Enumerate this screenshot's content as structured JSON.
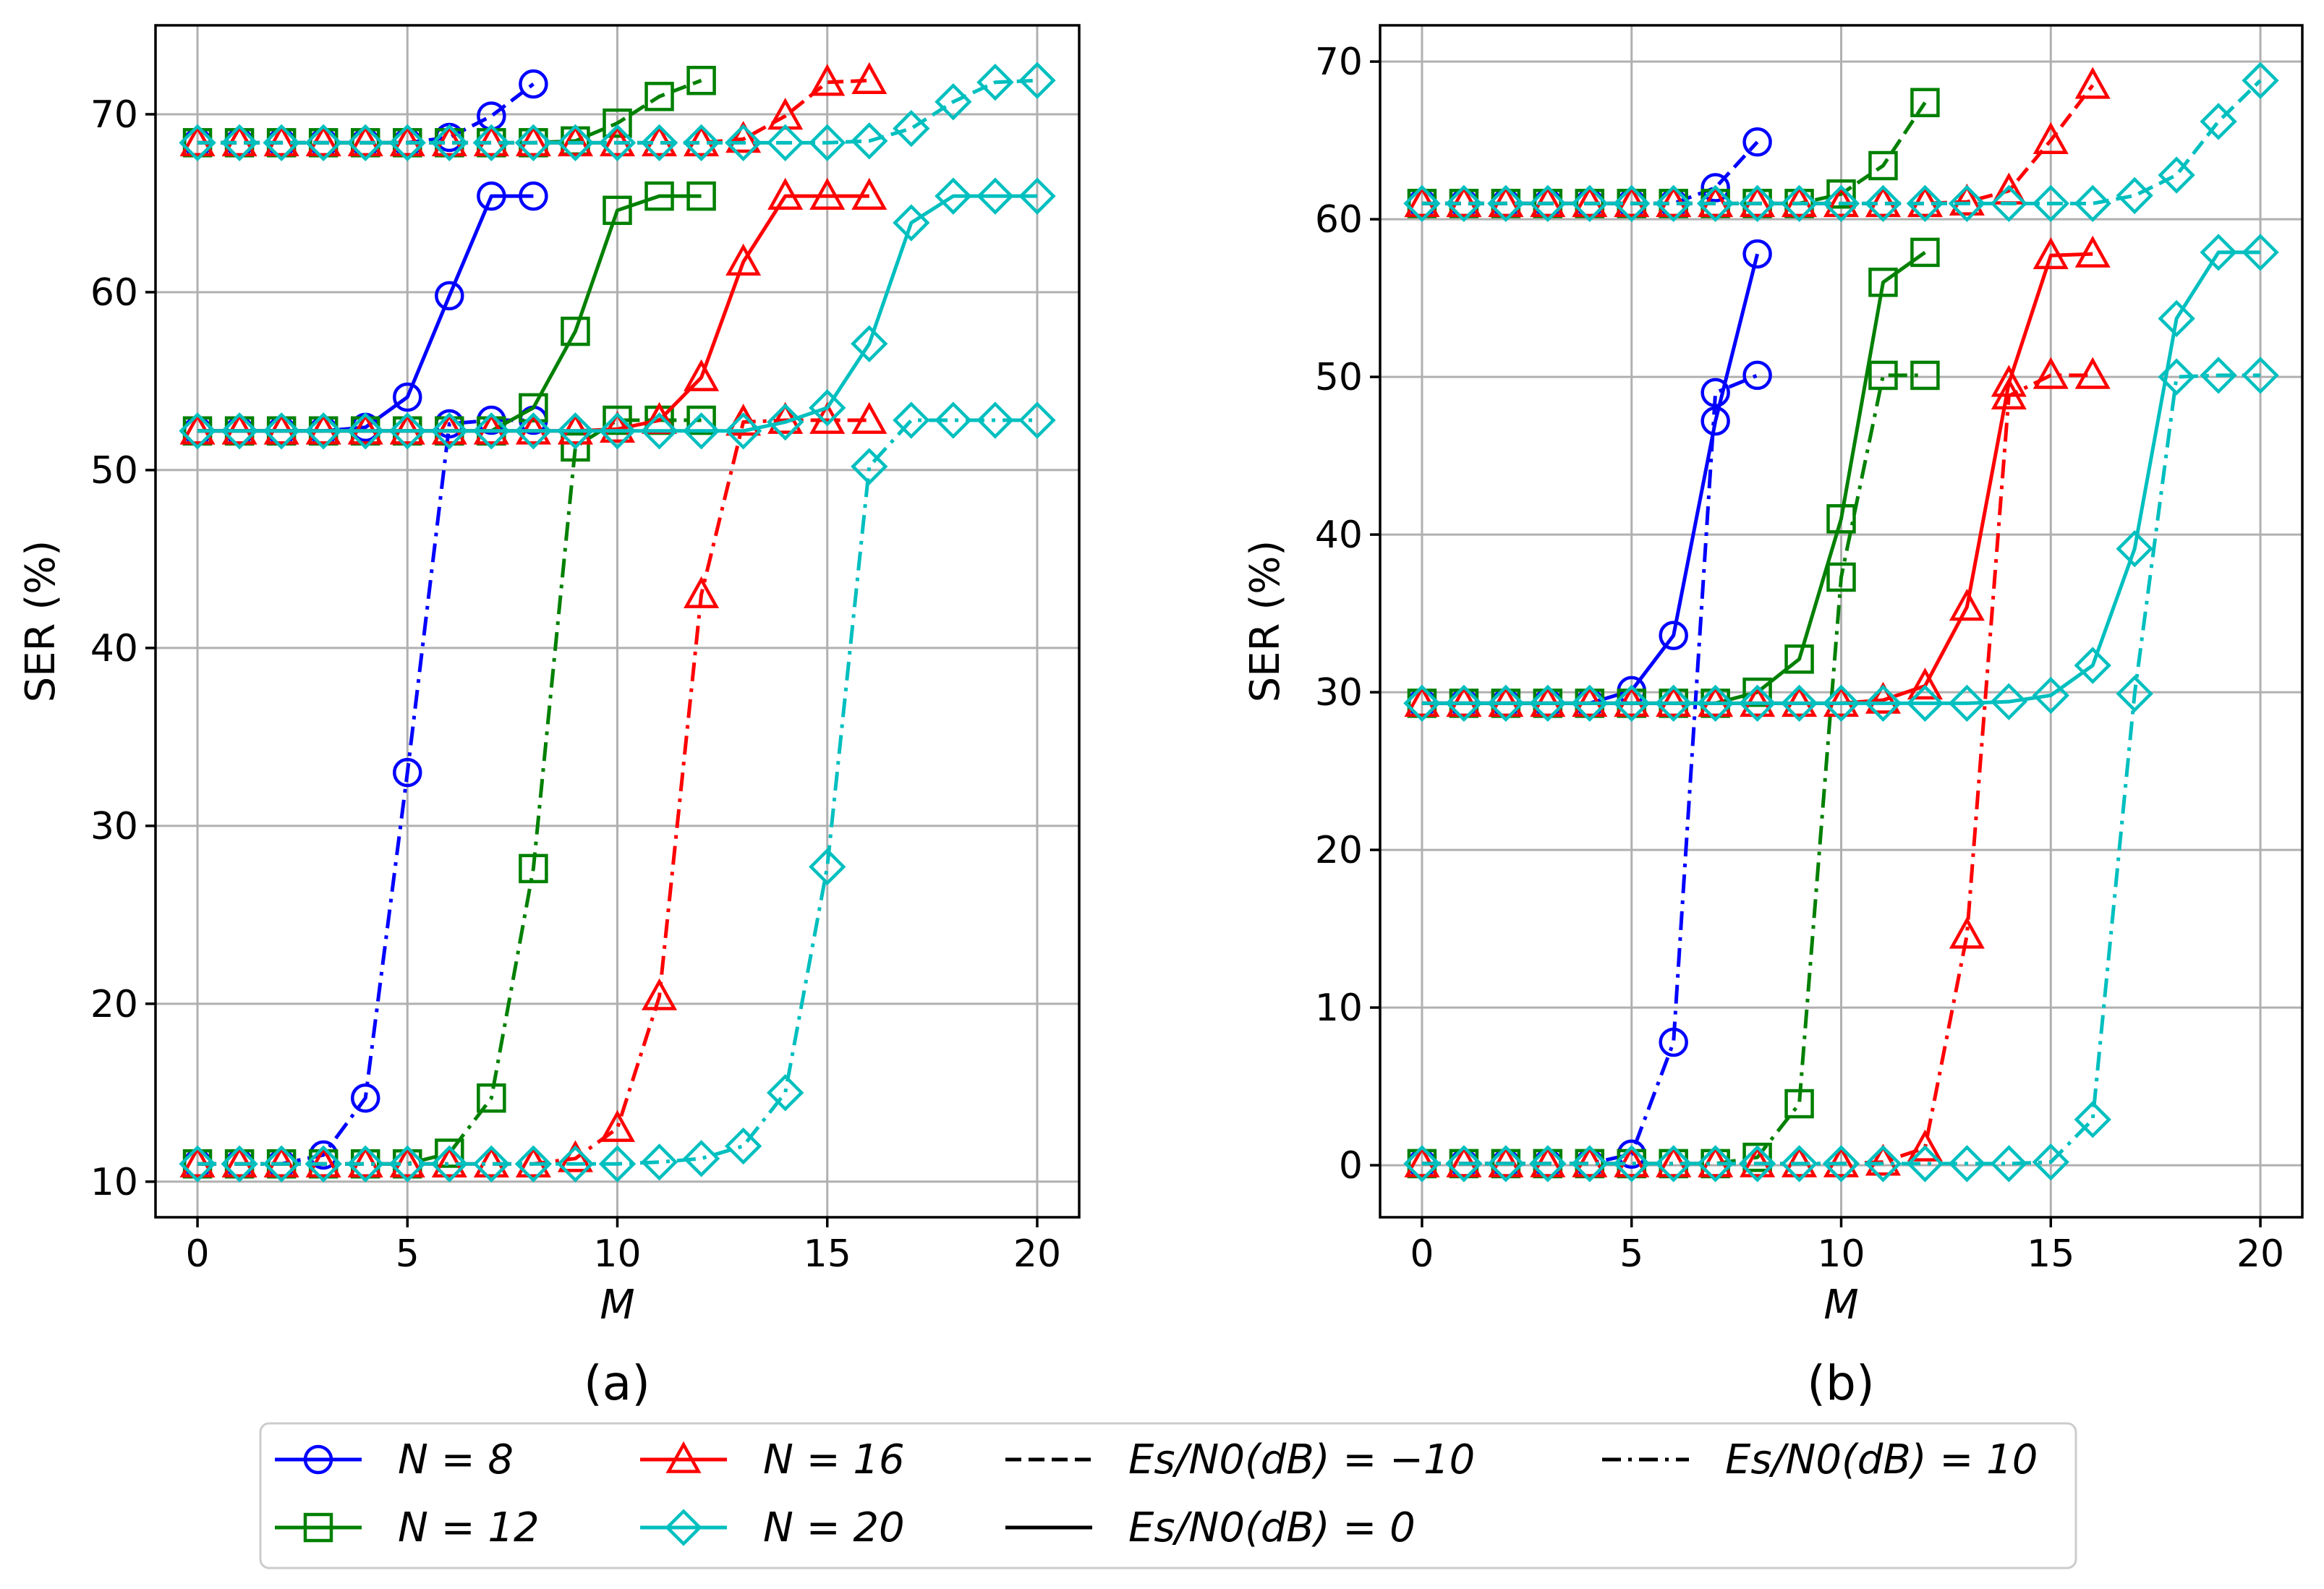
{
  "figure": {
    "legend": [
      {
        "key": "N8",
        "label": "N = 8",
        "color": "#0000ff",
        "marker": "circle"
      },
      {
        "key": "N12",
        "label": "N = 12",
        "color": "#008000",
        "marker": "square"
      },
      {
        "key": "N16",
        "label": "N = 16",
        "color": "#ff0000",
        "marker": "triangle"
      },
      {
        "key": "N20",
        "label": "N = 20",
        "color": "#00bfbf",
        "marker": "diamond"
      },
      {
        "key": "m10",
        "label": "Es/N0(dB) = −10",
        "linestyle": "dashed"
      },
      {
        "key": "p0",
        "label": "Es/N0(dB) = 0",
        "linestyle": "solid"
      },
      {
        "key": "p10",
        "label": "Es/N0(dB) = 10",
        "linestyle": "dashdot"
      }
    ]
  },
  "chart_data": [
    {
      "type": "line",
      "panel": "(a)",
      "xlabel": "M",
      "ylabel": "SER (%)",
      "xlim": [
        -1,
        21
      ],
      "ylim": [
        8,
        75
      ],
      "xticks": [
        0,
        5,
        10,
        15,
        20
      ],
      "yticks": [
        10,
        20,
        30,
        40,
        50,
        60,
        70
      ],
      "grid": true,
      "series": [
        {
          "name": "N = 8, Es/N0 = −10 dB",
          "color": "#0000ff",
          "marker": "circle",
          "linestyle": "dashed",
          "x": [
            0,
            1,
            2,
            3,
            4,
            5,
            6,
            7,
            8
          ],
          "y": [
            68.4,
            68.4,
            68.4,
            68.4,
            68.4,
            68.4,
            68.7,
            69.9,
            71.7
          ]
        },
        {
          "name": "N = 8, Es/N0 = 0 dB",
          "color": "#0000ff",
          "marker": "circle",
          "linestyle": "solid",
          "x": [
            0,
            1,
            2,
            3,
            4,
            5,
            6,
            7,
            8
          ],
          "y": [
            52.2,
            52.2,
            52.2,
            52.2,
            52.4,
            54.1,
            59.8,
            65.4,
            65.4
          ]
        },
        {
          "name": "N = 8, Es/N0 = 10 dB",
          "color": "#0000ff",
          "marker": "circle",
          "linestyle": "dashdot",
          "x": [
            0,
            1,
            2,
            3,
            4,
            5,
            6,
            7,
            8
          ],
          "y": [
            11.0,
            11.0,
            11.0,
            11.5,
            14.7,
            33.0,
            52.6,
            52.8,
            52.8
          ]
        },
        {
          "name": "N = 12, Es/N0 = −10 dB",
          "color": "#008000",
          "marker": "square",
          "linestyle": "dashed",
          "x": [
            0,
            1,
            2,
            3,
            4,
            5,
            6,
            7,
            8,
            9,
            10,
            11,
            12
          ],
          "y": [
            68.4,
            68.4,
            68.4,
            68.4,
            68.4,
            68.4,
            68.4,
            68.4,
            68.4,
            68.5,
            69.5,
            71.0,
            71.9
          ]
        },
        {
          "name": "N = 12, Es/N0 = 0 dB",
          "color": "#008000",
          "marker": "square",
          "linestyle": "solid",
          "x": [
            0,
            1,
            2,
            3,
            4,
            5,
            6,
            7,
            8,
            9,
            10,
            11,
            12
          ],
          "y": [
            52.2,
            52.2,
            52.2,
            52.2,
            52.2,
            52.2,
            52.2,
            52.2,
            53.5,
            57.8,
            64.6,
            65.4,
            65.4
          ]
        },
        {
          "name": "N = 12, Es/N0 = 10 dB",
          "color": "#008000",
          "marker": "square",
          "linestyle": "dashdot",
          "x": [
            0,
            1,
            2,
            3,
            4,
            5,
            6,
            7,
            8,
            9,
            10,
            11,
            12
          ],
          "y": [
            11.0,
            11.0,
            11.0,
            11.0,
            11.0,
            11.0,
            11.6,
            14.7,
            27.6,
            51.3,
            52.8,
            52.8,
            52.8
          ]
        },
        {
          "name": "N = 16, Es/N0 = −10 dB",
          "color": "#ff0000",
          "marker": "triangle",
          "linestyle": "dashed",
          "x": [
            0,
            1,
            2,
            3,
            4,
            5,
            6,
            7,
            8,
            9,
            10,
            11,
            12,
            13,
            14,
            15,
            16
          ],
          "y": [
            68.4,
            68.4,
            68.4,
            68.4,
            68.4,
            68.4,
            68.4,
            68.4,
            68.4,
            68.4,
            68.4,
            68.4,
            68.4,
            68.6,
            69.9,
            71.8,
            71.9
          ]
        },
        {
          "name": "N = 16, Es/N0 = 0 dB",
          "color": "#ff0000",
          "marker": "triangle",
          "linestyle": "solid",
          "x": [
            0,
            1,
            2,
            3,
            4,
            5,
            6,
            7,
            8,
            9,
            10,
            11,
            12,
            13,
            14,
            15,
            16
          ],
          "y": [
            52.2,
            52.2,
            52.2,
            52.2,
            52.2,
            52.2,
            52.2,
            52.2,
            52.2,
            52.2,
            52.3,
            52.8,
            55.2,
            61.7,
            65.4,
            65.4,
            65.4
          ]
        },
        {
          "name": "N = 16, Es/N0 = 10 dB",
          "color": "#ff0000",
          "marker": "triangle",
          "linestyle": "dashdot",
          "x": [
            0,
            1,
            2,
            3,
            4,
            5,
            6,
            7,
            8,
            9,
            10,
            11,
            12,
            13,
            14,
            15,
            16
          ],
          "y": [
            11.0,
            11.0,
            11.0,
            11.0,
            11.0,
            11.0,
            11.0,
            11.0,
            11.0,
            11.3,
            13.0,
            20.4,
            43.0,
            52.7,
            52.8,
            52.8,
            52.8
          ]
        },
        {
          "name": "N = 20, Es/N0 = −10 dB",
          "color": "#00bfbf",
          "marker": "diamond",
          "linestyle": "dashed",
          "x": [
            0,
            1,
            2,
            3,
            4,
            5,
            6,
            7,
            8,
            9,
            10,
            11,
            12,
            13,
            14,
            15,
            16,
            17,
            18,
            19,
            20
          ],
          "y": [
            68.4,
            68.4,
            68.4,
            68.4,
            68.4,
            68.4,
            68.4,
            68.4,
            68.4,
            68.4,
            68.4,
            68.4,
            68.4,
            68.4,
            68.4,
            68.4,
            68.5,
            69.2,
            70.7,
            71.8,
            71.9
          ]
        },
        {
          "name": "N = 20, Es/N0 = 0 dB",
          "color": "#00bfbf",
          "marker": "diamond",
          "linestyle": "solid",
          "x": [
            0,
            1,
            2,
            3,
            4,
            5,
            6,
            7,
            8,
            9,
            10,
            11,
            12,
            13,
            14,
            15,
            16,
            17,
            18,
            19,
            20
          ],
          "y": [
            52.2,
            52.2,
            52.2,
            52.2,
            52.2,
            52.2,
            52.2,
            52.2,
            52.2,
            52.2,
            52.2,
            52.2,
            52.2,
            52.2,
            52.7,
            53.5,
            57.1,
            63.9,
            65.4,
            65.4,
            65.4
          ]
        },
        {
          "name": "N = 20, Es/N0 = 10 dB",
          "color": "#00bfbf",
          "marker": "diamond",
          "linestyle": "dashdot",
          "x": [
            0,
            1,
            2,
            3,
            4,
            5,
            6,
            7,
            8,
            9,
            10,
            11,
            12,
            13,
            14,
            15,
            16,
            17,
            18,
            19,
            20
          ],
          "y": [
            11.0,
            11.0,
            11.0,
            11.0,
            11.0,
            11.0,
            11.0,
            11.0,
            11.0,
            11.0,
            11.0,
            11.1,
            11.3,
            12.0,
            15.0,
            27.7,
            50.2,
            52.8,
            52.8,
            52.8,
            52.8
          ]
        }
      ]
    },
    {
      "type": "line",
      "panel": "(b)",
      "xlabel": "M",
      "ylabel": "SER (%)",
      "xlim": [
        -1,
        21
      ],
      "ylim": [
        -3.3,
        72.3
      ],
      "xticks": [
        0,
        5,
        10,
        15,
        20
      ],
      "yticks": [
        0,
        10,
        20,
        30,
        40,
        50,
        60,
        70
      ],
      "grid": true,
      "series": [
        {
          "name": "N = 8, Es/N0 = −10 dB",
          "color": "#0000ff",
          "marker": "circle",
          "linestyle": "dashed",
          "x": [
            0,
            1,
            2,
            3,
            4,
            5,
            6,
            7,
            8
          ],
          "y": [
            61.0,
            61.0,
            61.0,
            61.0,
            61.0,
            61.0,
            61.0,
            62.0,
            64.9
          ]
        },
        {
          "name": "N = 8, Es/N0 = 0 dB",
          "color": "#0000ff",
          "marker": "circle",
          "linestyle": "solid",
          "x": [
            0,
            1,
            2,
            3,
            4,
            5,
            6,
            7,
            8
          ],
          "y": [
            29.3,
            29.3,
            29.3,
            29.3,
            29.3,
            30.1,
            33.6,
            47.2,
            57.8
          ]
        },
        {
          "name": "N = 8, Es/N0 = 10 dB",
          "color": "#0000ff",
          "marker": "circle",
          "linestyle": "dashdot",
          "x": [
            0,
            1,
            2,
            3,
            4,
            5,
            6,
            7,
            8
          ],
          "y": [
            0.1,
            0.1,
            0.1,
            0.1,
            0.1,
            0.7,
            7.8,
            49.0,
            50.1
          ]
        },
        {
          "name": "N = 12, Es/N0 = −10 dB",
          "color": "#008000",
          "marker": "square",
          "linestyle": "dashed",
          "x": [
            0,
            1,
            2,
            3,
            4,
            5,
            6,
            7,
            8,
            9,
            10,
            11,
            12
          ],
          "y": [
            61.0,
            61.0,
            61.0,
            61.0,
            61.0,
            61.0,
            61.0,
            61.0,
            61.0,
            61.0,
            61.6,
            63.4,
            67.4
          ]
        },
        {
          "name": "N = 12, Es/N0 = 0 dB",
          "color": "#008000",
          "marker": "square",
          "linestyle": "solid",
          "x": [
            0,
            1,
            2,
            3,
            4,
            5,
            6,
            7,
            8,
            9,
            10,
            11,
            12
          ],
          "y": [
            29.3,
            29.3,
            29.3,
            29.3,
            29.3,
            29.3,
            29.3,
            29.3,
            30.0,
            32.1,
            41.0,
            56.0,
            57.9
          ]
        },
        {
          "name": "N = 12, Es/N0 = 10 dB",
          "color": "#008000",
          "marker": "square",
          "linestyle": "dashdot",
          "x": [
            0,
            1,
            2,
            3,
            4,
            5,
            6,
            7,
            8,
            9,
            10,
            11,
            12
          ],
          "y": [
            0.1,
            0.1,
            0.1,
            0.1,
            0.1,
            0.1,
            0.1,
            0.1,
            0.5,
            3.9,
            37.3,
            50.1,
            50.1
          ]
        },
        {
          "name": "N = 16, Es/N0 = −10 dB",
          "color": "#ff0000",
          "marker": "triangle",
          "linestyle": "dashed",
          "x": [
            0,
            1,
            2,
            3,
            4,
            5,
            6,
            7,
            8,
            9,
            10,
            11,
            12,
            13,
            14,
            15,
            16
          ],
          "y": [
            61.0,
            61.0,
            61.0,
            61.0,
            61.0,
            61.0,
            61.0,
            61.0,
            61.0,
            61.0,
            61.0,
            61.0,
            61.0,
            61.1,
            61.8,
            65.0,
            68.5
          ]
        },
        {
          "name": "N = 16, Es/N0 = 0 dB",
          "color": "#ff0000",
          "marker": "triangle",
          "linestyle": "solid",
          "x": [
            0,
            1,
            2,
            3,
            4,
            5,
            6,
            7,
            8,
            9,
            10,
            11,
            12,
            13,
            14,
            15,
            16
          ],
          "y": [
            29.3,
            29.3,
            29.3,
            29.3,
            29.3,
            29.3,
            29.3,
            29.3,
            29.3,
            29.3,
            29.3,
            29.5,
            30.4,
            35.4,
            49.6,
            57.7,
            57.8
          ]
        },
        {
          "name": "N = 16, Es/N0 = 10 dB",
          "color": "#ff0000",
          "marker": "triangle",
          "linestyle": "dashdot",
          "x": [
            0,
            1,
            2,
            3,
            4,
            5,
            6,
            7,
            8,
            9,
            10,
            11,
            12,
            13,
            14,
            15,
            16
          ],
          "y": [
            0.1,
            0.1,
            0.1,
            0.1,
            0.1,
            0.1,
            0.1,
            0.1,
            0.1,
            0.1,
            0.1,
            0.2,
            1.1,
            14.6,
            48.8,
            50.1,
            50.1
          ]
        },
        {
          "name": "N = 20, Es/N0 = −10 dB",
          "color": "#00bfbf",
          "marker": "diamond",
          "linestyle": "dashed",
          "x": [
            0,
            1,
            2,
            3,
            4,
            5,
            6,
            7,
            8,
            9,
            10,
            11,
            12,
            13,
            14,
            15,
            16,
            17,
            18,
            19,
            20
          ],
          "y": [
            61.0,
            61.0,
            61.0,
            61.0,
            61.0,
            61.0,
            61.0,
            61.0,
            61.0,
            61.0,
            61.0,
            61.0,
            61.0,
            61.0,
            61.0,
            61.0,
            61.0,
            61.5,
            62.8,
            66.2,
            68.8
          ]
        },
        {
          "name": "N = 20, Es/N0 = 0 dB",
          "color": "#00bfbf",
          "marker": "diamond",
          "linestyle": "solid",
          "x": [
            0,
            1,
            2,
            3,
            4,
            5,
            6,
            7,
            8,
            9,
            10,
            11,
            12,
            13,
            14,
            15,
            16,
            17,
            18,
            19,
            20
          ],
          "y": [
            29.3,
            29.3,
            29.3,
            29.3,
            29.3,
            29.3,
            29.3,
            29.3,
            29.3,
            29.3,
            29.3,
            29.3,
            29.3,
            29.3,
            29.4,
            29.8,
            31.7,
            39.1,
            53.7,
            57.9,
            57.9
          ]
        },
        {
          "name": "N = 20, Es/N0 = 10 dB",
          "color": "#00bfbf",
          "marker": "diamond",
          "linestyle": "dashdot",
          "x": [
            0,
            1,
            2,
            3,
            4,
            5,
            6,
            7,
            8,
            9,
            10,
            11,
            12,
            13,
            14,
            15,
            16,
            17,
            18,
            19,
            20
          ],
          "y": [
            0.1,
            0.1,
            0.1,
            0.1,
            0.1,
            0.1,
            0.1,
            0.1,
            0.1,
            0.1,
            0.1,
            0.1,
            0.1,
            0.1,
            0.1,
            0.2,
            2.9,
            29.9,
            50.0,
            50.1,
            50.1
          ]
        }
      ]
    }
  ]
}
